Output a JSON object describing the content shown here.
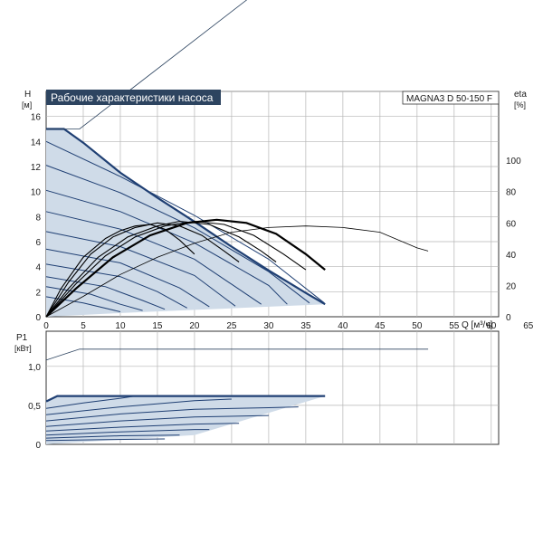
{
  "chart_data": [
    {
      "type": "line",
      "title": "Рабочие характеристики насоса",
      "model": "MAGNA3 D 50-150 F",
      "ylabel_left": "H",
      "ylabel_left_unit": "[м]",
      "ylabel_right": "eta",
      "ylabel_right_unit": "[%]",
      "xlabel": "Q [м³/ч]",
      "xlim": [
        0,
        61
      ],
      "ylim": [
        0,
        18
      ],
      "ylim_right": [
        0,
        144
      ],
      "x_ticks": [
        "0",
        "5",
        "10",
        "15",
        "20",
        "25",
        "30",
        "35",
        "40",
        "45",
        "50",
        "55",
        "60",
        "65"
      ],
      "y_ticks": [
        "0",
        "2",
        "4",
        "6",
        "8",
        "10",
        "12",
        "14",
        "16"
      ],
      "y_ticks_right": [
        "0",
        "20",
        "40",
        "60",
        "80",
        "100"
      ],
      "grid": true,
      "envelope_max_curve": [
        [
          0,
          15
        ],
        [
          2.4,
          15
        ],
        [
          5,
          13.9
        ],
        [
          10,
          11.5
        ],
        [
          15,
          9.5
        ],
        [
          20,
          7.6
        ],
        [
          25,
          5.6
        ],
        [
          30,
          3.7
        ],
        [
          35,
          1.9
        ],
        [
          37.6,
          1.0
        ]
      ],
      "envelope_bottom": [
        [
          0,
          0
        ],
        [
          10,
          0.3
        ],
        [
          20,
          0.55
        ],
        [
          30,
          0.8
        ],
        [
          37.6,
          1.0
        ]
      ],
      "setpoint_curves": [
        {
          "points": [
            [
              0,
              14
            ],
            [
              10,
              11.2
            ],
            [
              20,
              8.1
            ],
            [
              30,
              4.6
            ],
            [
              37.5,
              1.1
            ]
          ]
        },
        {
          "points": [
            [
              0,
              12.1
            ],
            [
              10,
              9.9
            ],
            [
              20,
              7.1
            ],
            [
              30,
              3.6
            ],
            [
              35.5,
              1.1
            ]
          ]
        },
        {
          "points": [
            [
              0,
              10.1
            ],
            [
              10,
              8.4
            ],
            [
              20,
              5.9
            ],
            [
              30,
              2.5
            ],
            [
              32.5,
              1.0
            ]
          ]
        },
        {
          "points": [
            [
              0,
              8.4
            ],
            [
              10,
              7.0
            ],
            [
              20,
              4.6
            ],
            [
              29,
              1.0
            ]
          ]
        },
        {
          "points": [
            [
              0,
              6.8
            ],
            [
              10,
              5.6
            ],
            [
              20,
              3.3
            ],
            [
              25.5,
              0.85
            ]
          ]
        },
        {
          "points": [
            [
              0,
              5.4
            ],
            [
              10,
              4.3
            ],
            [
              18,
              2.3
            ],
            [
              22,
              0.8
            ]
          ]
        },
        {
          "points": [
            [
              0,
              4.2
            ],
            [
              10,
              3.2
            ],
            [
              15,
              2.0
            ],
            [
              19,
              0.7
            ]
          ]
        },
        {
          "points": [
            [
              0,
              3.2
            ],
            [
              8,
              2.4
            ],
            [
              13,
              1.3
            ],
            [
              16,
              0.6
            ]
          ]
        },
        {
          "points": [
            [
              0,
              2.4
            ],
            [
              6,
              1.8
            ],
            [
              10,
              1.0
            ],
            [
              13,
              0.5
            ]
          ]
        },
        {
          "points": [
            [
              0,
              1.6
            ],
            [
              5,
              1.1
            ],
            [
              10,
              0.4
            ]
          ]
        }
      ],
      "eta_curves": [
        {
          "points": [
            [
              0,
              0
            ],
            [
              2,
              18
            ],
            [
              5,
              38
            ],
            [
              8,
              50
            ],
            [
              10,
              55
            ],
            [
              12,
              58
            ],
            [
              14,
              59
            ],
            [
              16,
              56
            ],
            [
              18,
              49
            ],
            [
              20,
              40
            ]
          ]
        },
        {
          "points": [
            [
              0,
              0
            ],
            [
              3,
              22
            ],
            [
              6,
              40
            ],
            [
              9,
              51
            ],
            [
              12,
              57
            ],
            [
              15,
              60
            ],
            [
              18,
              58
            ],
            [
              21,
              52
            ],
            [
              24,
              42
            ],
            [
              26,
              35
            ]
          ]
        },
        {
          "points": [
            [
              0,
              0
            ],
            [
              3,
              18
            ],
            [
              7,
              38
            ],
            [
              11,
              51
            ],
            [
              15,
              58
            ],
            [
              18,
              61
            ],
            [
              22,
              59
            ],
            [
              26,
              51
            ],
            [
              29,
              42
            ],
            [
              31,
              35
            ]
          ]
        },
        {
          "points": [
            [
              0,
              0
            ],
            [
              4,
              21
            ],
            [
              8,
              39
            ],
            [
              12,
              51
            ],
            [
              16,
              58
            ],
            [
              20,
              61
            ],
            [
              24,
              59
            ],
            [
              28,
              52
            ],
            [
              32,
              40
            ],
            [
              35,
              30
            ]
          ]
        },
        {
          "points": [
            [
              0,
              0
            ],
            [
              4,
              18
            ],
            [
              9,
              38
            ],
            [
              14,
              52
            ],
            [
              19,
              60
            ],
            [
              23,
              62
            ],
            [
              27,
              60
            ],
            [
              31,
              53
            ],
            [
              35,
              40
            ],
            [
              37.6,
              30
            ]
          ]
        }
      ],
      "p1_boundary_curve": [
        [
          2,
          43
        ],
        [
          5,
          39
        ],
        [
          10,
          36
        ],
        [
          13,
          34
        ],
        [
          26,
          34
        ]
      ],
      "max_eta_curve": [
        [
          0,
          0
        ],
        [
          5,
          13
        ],
        [
          10,
          27
        ],
        [
          15,
          38
        ],
        [
          20,
          47
        ],
        [
          25,
          54
        ],
        [
          30,
          57
        ],
        [
          35,
          58
        ],
        [
          40,
          57
        ],
        [
          45,
          54
        ],
        [
          50,
          44
        ],
        [
          51.5,
          42
        ]
      ],
      "system_line": [
        [
          0,
          15
        ],
        [
          4.5,
          15
        ],
        [
          51.5,
          36.5
        ]
      ]
    },
    {
      "type": "line",
      "ylabel": "P1",
      "ylabel_unit": "[кВт]",
      "xlim": [
        0,
        61
      ],
      "ylim": [
        0,
        1.45
      ],
      "y_ticks": [
        "0",
        "0,5",
        "1,0"
      ],
      "grid": true,
      "max_curve": [
        [
          0,
          1.08
        ],
        [
          4.5,
          1.22
        ],
        [
          51.5,
          1.22
        ]
      ],
      "envelope_top": [
        [
          0,
          0.55
        ],
        [
          1.5,
          0.62
        ],
        [
          37.6,
          0.62
        ]
      ],
      "envelope_bottom": [
        [
          0,
          0
        ],
        [
          20,
          0.12
        ],
        [
          37.6,
          0.62
        ]
      ],
      "power_curves": [
        {
          "points": [
            [
              0,
              0.55
            ],
            [
              1.5,
              0.62
            ],
            [
              37.6,
              0.62
            ]
          ]
        },
        {
          "points": [
            [
              0,
              0.46
            ],
            [
              5,
              0.53
            ],
            [
              10,
              0.59
            ],
            [
              12,
              0.62
            ]
          ]
        },
        {
          "points": [
            [
              0,
              0.38
            ],
            [
              10,
              0.48
            ],
            [
              20,
              0.56
            ],
            [
              25,
              0.58
            ]
          ]
        },
        {
          "points": [
            [
              0,
              0.3
            ],
            [
              10,
              0.39
            ],
            [
              20,
              0.45
            ],
            [
              30,
              0.47
            ],
            [
              34,
              0.48
            ]
          ]
        },
        {
          "points": [
            [
              0,
              0.23
            ],
            [
              10,
              0.3
            ],
            [
              20,
              0.35
            ],
            [
              30,
              0.37
            ]
          ]
        },
        {
          "points": [
            [
              0,
              0.17
            ],
            [
              10,
              0.22
            ],
            [
              20,
              0.26
            ],
            [
              26,
              0.27
            ]
          ]
        },
        {
          "points": [
            [
              0,
              0.12
            ],
            [
              10,
              0.16
            ],
            [
              20,
              0.19
            ],
            [
              22,
              0.19
            ]
          ]
        },
        {
          "points": [
            [
              0,
              0.08
            ],
            [
              10,
              0.11
            ],
            [
              18,
              0.12
            ]
          ]
        },
        {
          "points": [
            [
              0,
              0.05
            ],
            [
              8,
              0.06
            ],
            [
              16,
              0.07
            ]
          ]
        }
      ]
    }
  ]
}
